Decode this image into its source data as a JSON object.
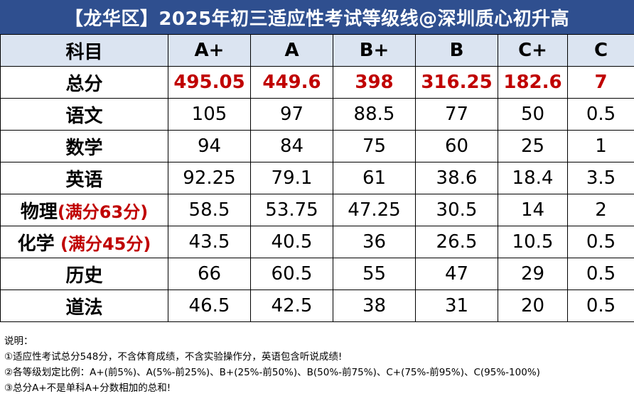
{
  "title": "【龙华区】2025年初三适应性考试等级线@深圳质心初升高",
  "header": {
    "subject_label": "科目",
    "grades": [
      "A+",
      "A",
      "B+",
      "B",
      "C+",
      "C"
    ]
  },
  "rows": [
    {
      "subject": "总分",
      "note": "",
      "values": [
        "495.05",
        "449.6",
        "398",
        "316.25",
        "182.6",
        "7"
      ]
    },
    {
      "subject": "语文",
      "note": "",
      "values": [
        "105",
        "97",
        "88.5",
        "77",
        "50",
        "0.5"
      ]
    },
    {
      "subject": "数学",
      "note": "",
      "values": [
        "94",
        "84",
        "75",
        "60",
        "25",
        "1"
      ]
    },
    {
      "subject": "英语",
      "note": "",
      "values": [
        "92.25",
        "79.1",
        "61",
        "38.6",
        "18.4",
        "3.5"
      ]
    },
    {
      "subject": "物理",
      "note": "(满分63分)",
      "values": [
        "58.5",
        "53.75",
        "47.25",
        "30.5",
        "14",
        "2"
      ]
    },
    {
      "subject": "化学",
      "note": " (满分45分)",
      "values": [
        "43.5",
        "40.5",
        "36",
        "26.5",
        "10.5",
        "0.5"
      ]
    },
    {
      "subject": "历史",
      "note": "",
      "values": [
        "66",
        "60.5",
        "55",
        "47",
        "29",
        "0.5"
      ]
    },
    {
      "subject": "道法",
      "note": "",
      "values": [
        "46.5",
        "42.5",
        "38",
        "31",
        "20",
        "0.5"
      ]
    }
  ],
  "notes": {
    "heading": "说明：",
    "items": [
      "①适应性考试总分548分，不含体育成绩，不含实验操作分，英语包含听说成绩!",
      "②各等级划定比例：A+(前5%)、A(5%-前25%)、B+(25%-前50%)、B(50%-前75%)、C+(75%-前95%)、C(95%-100%)",
      "③总分A+不是单科A+分数相加的总和!"
    ]
  },
  "colors": {
    "title_bg": "#2f4f8f",
    "header_bg": "#dbe4f1",
    "highlight_red": "#c00000"
  }
}
